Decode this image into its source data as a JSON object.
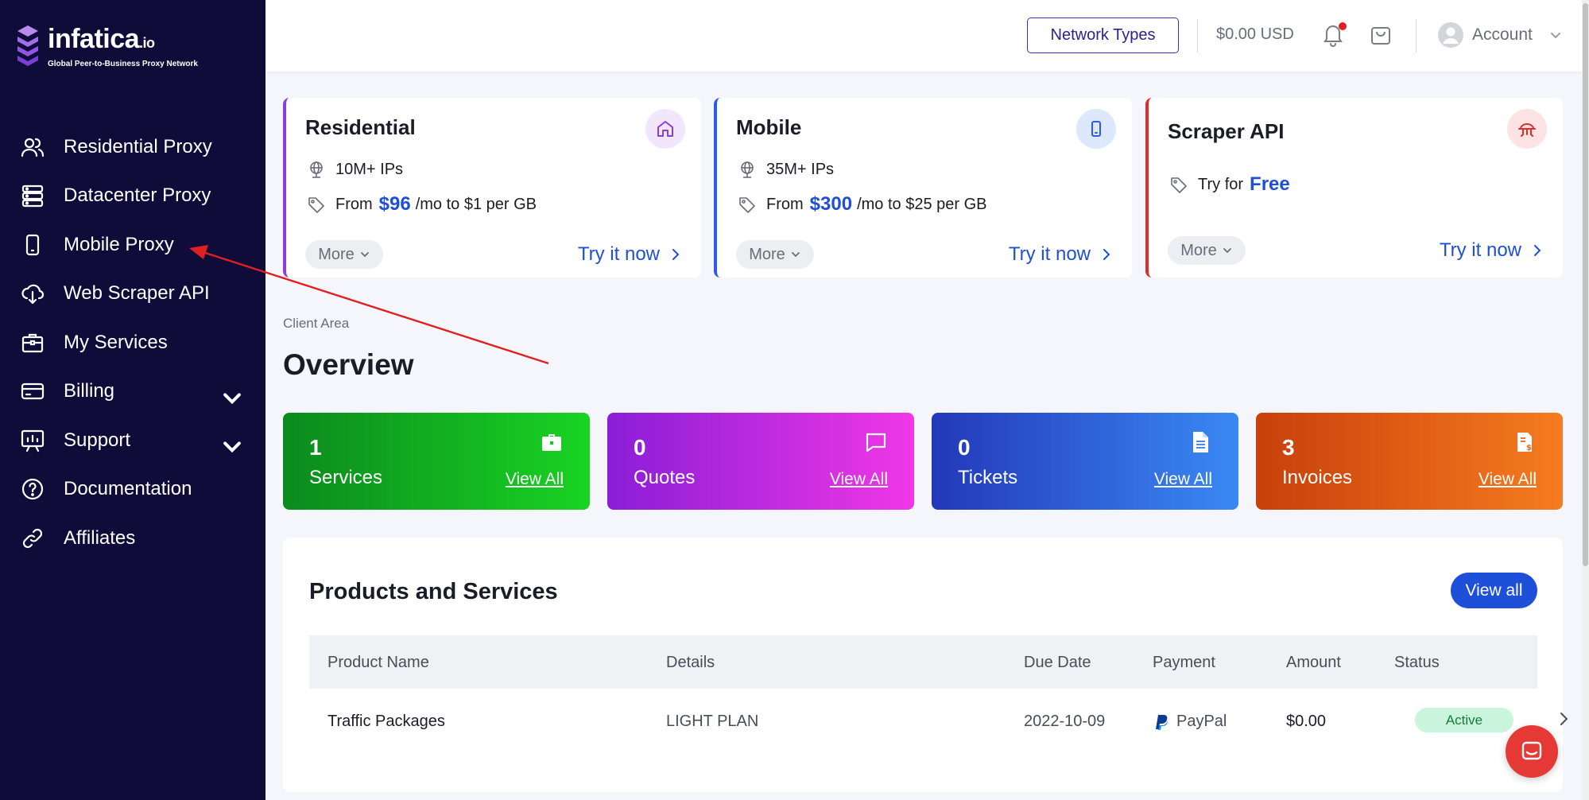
{
  "brand": {
    "name": "infatica",
    "suffix": ".io",
    "tagline": "Global Peer-to-Business Proxy Network"
  },
  "sidebar": {
    "items": [
      {
        "label": "Residential Proxy",
        "icon": "users-icon"
      },
      {
        "label": "Datacenter Proxy",
        "icon": "server-icon"
      },
      {
        "label": "Mobile Proxy",
        "icon": "phone-icon"
      },
      {
        "label": "Web Scraper API",
        "icon": "cloud-download-icon"
      },
      {
        "label": "My Services",
        "icon": "briefcase-icon"
      },
      {
        "label": "Billing",
        "icon": "credit-card-icon"
      },
      {
        "label": "Support",
        "icon": "presentation-icon"
      },
      {
        "label": "Documentation",
        "icon": "help-circle-icon"
      },
      {
        "label": "Affiliates",
        "icon": "link-icon"
      }
    ]
  },
  "topbar": {
    "network_types": "Network Types",
    "balance": "$0.00 USD",
    "account": "Account"
  },
  "products": {
    "residential": {
      "title": "Residential",
      "ips": "10M+ IPs",
      "price_prefix": "From",
      "price": "$96",
      "price_suffix": "/mo to $1 per GB",
      "more": "More",
      "cta": "Try it now",
      "accent": "#8b3fd9"
    },
    "mobile": {
      "title": "Mobile",
      "ips": "35M+ IPs",
      "price_prefix": "From",
      "price": "$300",
      "price_suffix": "/mo to $25 per GB",
      "more": "More",
      "cta": "Try it now",
      "accent": "#2d5be3"
    },
    "scraper": {
      "title": "Scraper API",
      "trial_prefix": "Try for",
      "trial": "Free",
      "more": "More",
      "cta": "Try it now",
      "accent": "#e02b2b"
    }
  },
  "breadcrumb": "Client Area",
  "page_title": "Overview",
  "stats": [
    {
      "count": "1",
      "label": "Services",
      "link": "View All"
    },
    {
      "count": "0",
      "label": "Quotes",
      "link": "View All"
    },
    {
      "count": "0",
      "label": "Tickets",
      "link": "View All"
    },
    {
      "count": "3",
      "label": "Invoices",
      "link": "View All"
    }
  ],
  "services": {
    "title": "Products and Services",
    "view_all": "View all",
    "columns": [
      "Product Name",
      "Details",
      "Due Date",
      "Payment",
      "Amount",
      "Status"
    ],
    "rows": [
      {
        "product": "Traffic Packages",
        "details": "LIGHT PLAN",
        "due": "2022-10-09",
        "payment": "PayPal",
        "amount": "$0.00",
        "status": "Active"
      }
    ]
  }
}
